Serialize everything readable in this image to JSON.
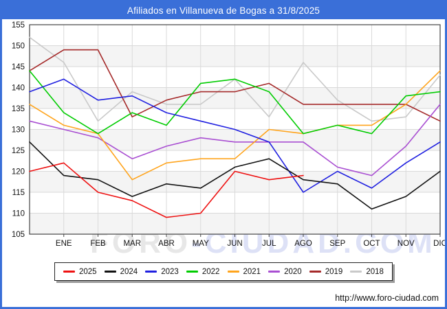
{
  "title": "Afiliados en Villanueva de Bogas a 31/8/2025",
  "watermark": {
    "part1": "FORO",
    "part2": "-CIUDAD.COM"
  },
  "footer": {
    "url": "http://www.foro-ciudad.com"
  },
  "frame_color": "#3a6fd8",
  "chart_data": {
    "type": "line",
    "title": "Afiliados en Villanueva de Bogas a 31/8/2025",
    "xlabel": "",
    "ylabel": "",
    "x_categories": [
      "ENE",
      "FEB",
      "MAR",
      "ABR",
      "MAY",
      "JUN",
      "JUL",
      "AGO",
      "SEP",
      "OCT",
      "NOV",
      "DIC"
    ],
    "x_note": "first value of each series is anchored on the y-axis before ENE",
    "ylim": [
      105,
      155
    ],
    "y_ticks": [
      105,
      110,
      115,
      120,
      125,
      130,
      135,
      140,
      145,
      150,
      155
    ],
    "grid": true,
    "legend_position": "bottom",
    "band_fill": "#f4f4f4",
    "grid_color": "#d9d9d9",
    "axis_color": "#444444",
    "series": [
      {
        "name": "2025",
        "color": "#ee1111",
        "values": [
          120,
          122,
          115,
          113,
          109,
          110,
          120,
          118,
          119
        ]
      },
      {
        "name": "2024",
        "color": "#111111",
        "values": [
          127,
          119,
          118,
          114,
          117,
          116,
          121,
          123,
          118,
          117,
          111,
          114,
          120
        ]
      },
      {
        "name": "2023",
        "color": "#1f1fe0",
        "values": [
          139,
          142,
          137,
          138,
          134,
          132,
          130,
          127,
          115,
          120,
          116,
          122,
          127
        ]
      },
      {
        "name": "2022",
        "color": "#00cc00",
        "values": [
          144,
          134,
          129,
          134,
          131,
          141,
          142,
          139,
          129,
          131,
          129,
          138,
          139
        ]
      },
      {
        "name": "2021",
        "color": "#ffa41c",
        "values": [
          136,
          131,
          129,
          118,
          122,
          123,
          123,
          130,
          129,
          131,
          131,
          136,
          144
        ]
      },
      {
        "name": "2020",
        "color": "#a94fd2",
        "values": [
          132,
          130,
          128,
          123,
          126,
          128,
          127,
          127,
          127,
          121,
          119,
          126,
          136
        ]
      },
      {
        "name": "2019",
        "color": "#a52a2a",
        "values": [
          144,
          149,
          149,
          133,
          137,
          139,
          139,
          141,
          136,
          136,
          136,
          136,
          132
        ]
      },
      {
        "name": "2018",
        "color": "#c9c9c9",
        "values": [
          152,
          146,
          132,
          139,
          136,
          136,
          142,
          133,
          146,
          137,
          132,
          133,
          143
        ]
      }
    ]
  }
}
